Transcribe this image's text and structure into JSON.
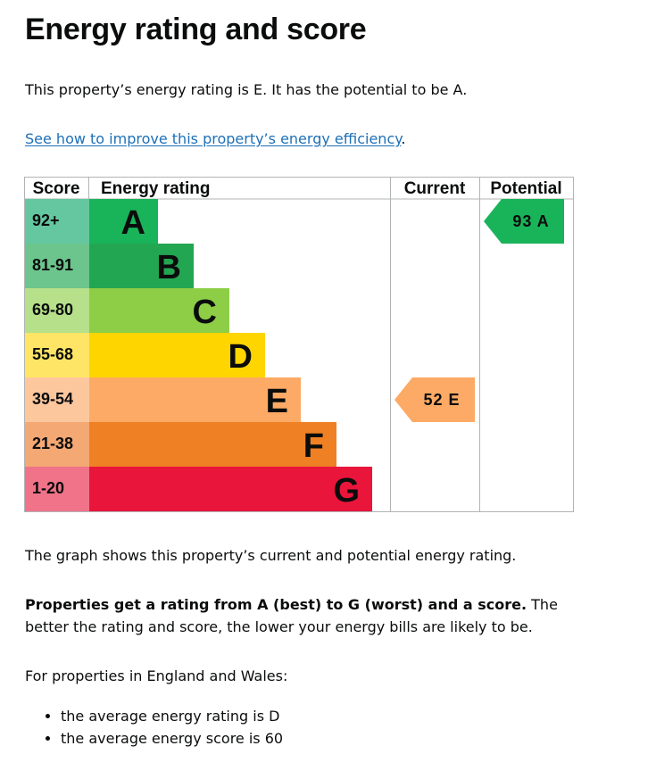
{
  "page": {
    "title": "Energy rating and score",
    "intro": "This property’s energy rating is E. It has the potential to be A.",
    "link_text": "See how to improve this property’s energy efficiency",
    "link_suffix": ".",
    "graph_description": "The graph shows this property’s current and potential energy rating.",
    "scale_bold": "Properties get a rating from A (best) to G (worst) and a score.",
    "scale_rest": " The better the rating and score, the lower your energy bills are likely to be.",
    "averages_intro": "For properties in England and Wales:",
    "averages": [
      "the average energy rating is D",
      "the average energy score is 60"
    ]
  },
  "chart_data": {
    "type": "table",
    "headers": {
      "score": "Score",
      "rating": "Energy rating",
      "current": "Current",
      "potential": "Potential"
    },
    "bands": [
      {
        "letter": "A",
        "range": "92+",
        "color": "#19b459",
        "score_bg": "#64c7a0"
      },
      {
        "letter": "B",
        "range": "81-91",
        "color": "#23a652",
        "score_bg": "#6cc58c"
      },
      {
        "letter": "C",
        "range": "69-80",
        "color": "#8dce46",
        "score_bg": "#b6e08a"
      },
      {
        "letter": "D",
        "range": "55-68",
        "color": "#ffd500",
        "score_bg": "#ffe566"
      },
      {
        "letter": "E",
        "range": "39-54",
        "color": "#fcaa65",
        "score_bg": "#fdc79e"
      },
      {
        "letter": "F",
        "range": "21-38",
        "color": "#ef8023",
        "score_bg": "#f4a874"
      },
      {
        "letter": "G",
        "range": "1-20",
        "color": "#e9153b",
        "score_bg": "#f07389"
      }
    ],
    "current": {
      "score": 52,
      "rating": "E",
      "label": "52 E",
      "color": "#fcaa65"
    },
    "potential": {
      "score": 93,
      "rating": "A",
      "label": "93 A",
      "color": "#19b459"
    }
  }
}
